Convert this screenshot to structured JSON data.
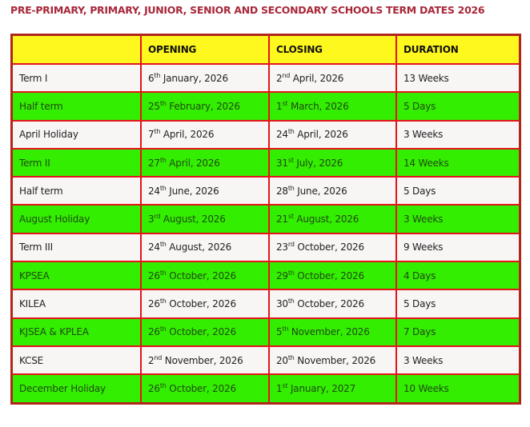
{
  "title": "PRE-PRIMARY, PRIMARY, JUNIOR, SENIOR AND SECONDARY SCHOOLS TERM DATES 2026",
  "colors": {
    "header": "#fff81e",
    "green_row": "#33ee00",
    "white_row": "#f8f5f5",
    "border": "#e4141a",
    "title": "#a8283a"
  },
  "headers": [
    "",
    "OPENING",
    "CLOSING",
    "DURATION"
  ],
  "rows": [
    {
      "name": "Term I",
      "open_d": "6",
      "open_s": "th",
      "open_r": " January, 2026",
      "close_d": "2",
      "close_s": "nd",
      "close_r": " April, 2026",
      "duration": "13 Weeks",
      "color": "white"
    },
    {
      "name": "Half term",
      "open_d": "25",
      "open_s": "th",
      "open_r": " February, 2026",
      "close_d": "1",
      "close_s": "st",
      "close_r": " March, 2026",
      "duration": "5 Days",
      "color": "green"
    },
    {
      "name": "April Holiday",
      "open_d": "7",
      "open_s": "th",
      "open_r": " April, 2026",
      "close_d": "24",
      "close_s": "th",
      "close_r": " April, 2026",
      "duration": "3 Weeks",
      "color": "white"
    },
    {
      "name": "Term II",
      "open_d": "27",
      "open_s": "th",
      "open_r": " April, 2026",
      "close_d": "31",
      "close_s": "st",
      "close_r": " July, 2026",
      "duration": "14 Weeks",
      "color": "green"
    },
    {
      "name": "Half term",
      "open_d": "24",
      "open_s": "th",
      "open_r": " June, 2026",
      "close_d": "28",
      "close_s": "th",
      "close_r": " June, 2026",
      "duration": "5 Days",
      "color": "white"
    },
    {
      "name": "August Holiday",
      "open_d": "3",
      "open_s": "rd",
      "open_r": " August, 2026",
      "close_d": "21",
      "close_s": "st",
      "close_r": " August, 2026",
      "duration": "3 Weeks",
      "color": "green"
    },
    {
      "name": "Term III",
      "open_d": "24",
      "open_s": "th",
      "open_r": " August, 2026",
      "close_d": "23",
      "close_s": "rd",
      "close_r": " October, 2026",
      "duration": "9 Weeks",
      "color": "white"
    },
    {
      "name": "KPSEA",
      "open_d": "26",
      "open_s": "th",
      "open_r": " October, 2026",
      "close_d": "29",
      "close_s": "th",
      "close_r": " October, 2026",
      "duration": "4 Days",
      "color": "green"
    },
    {
      "name": "KILEA",
      "open_d": "26",
      "open_s": "th",
      "open_r": " October, 2026",
      "close_d": "30",
      "close_s": "th",
      "close_r": " October, 2026",
      "duration": "5 Days",
      "color": "white"
    },
    {
      "name": "KJSEA & KPLEA",
      "open_d": "26",
      "open_s": "th",
      "open_r": " October, 2026",
      "close_d": "5",
      "close_s": "th",
      "close_r": " November, 2026",
      "duration": "7 Days",
      "color": "green"
    },
    {
      "name": "KCSE",
      "open_d": "2",
      "open_s": "nd",
      "open_r": " November, 2026",
      "close_d": "20",
      "close_s": "th",
      "close_r": " November, 2026",
      "duration": "3 Weeks",
      "color": "white"
    },
    {
      "name": "December Holiday",
      "open_d": "26",
      "open_s": "th",
      "open_r": " October, 2026",
      "close_d": "1",
      "close_s": "st",
      "close_r": " January, 2027",
      "duration": "10 Weeks",
      "color": "green"
    }
  ]
}
